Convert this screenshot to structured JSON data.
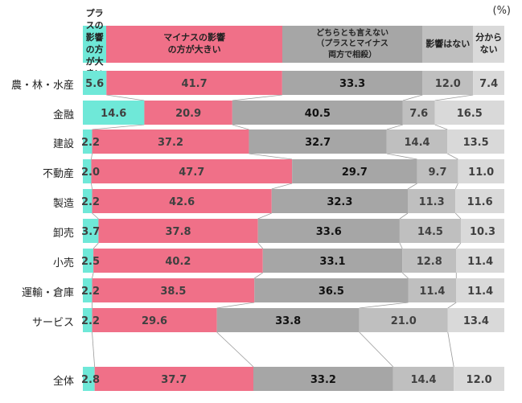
{
  "unit": "(%)",
  "colors": {
    "plus": "#6fe8d8",
    "minus": "#f07088",
    "neither": "#a6a6a6",
    "no_effect": "#bfbfbf",
    "unknown": "#d9d9d9"
  },
  "legend": [
    {
      "key": "plus",
      "label": "プラスの影響\nの方が大きい"
    },
    {
      "key": "minus",
      "label": "マイナスの影響\nの方が大きい"
    },
    {
      "key": "neither",
      "label": "どちらとも言えない\n（プラスとマイナス\n両方で相殺）"
    },
    {
      "key": "no_effect",
      "label": "影響はない"
    },
    {
      "key": "unknown",
      "label": "分からない"
    }
  ],
  "chart_data": {
    "type": "bar",
    "orientation": "horizontal",
    "stacked": "100%",
    "unit": "(%)",
    "categories": [
      "農・林・水産",
      "金融",
      "建設",
      "不動産",
      "製造",
      "卸売",
      "小売",
      "運輸・倉庫",
      "サービス",
      "全体"
    ],
    "series": [
      {
        "name": "プラスの影響の方が大きい",
        "key": "plus",
        "values": [
          5.6,
          14.6,
          2.2,
          2.0,
          2.2,
          3.7,
          2.5,
          2.2,
          2.2,
          2.8
        ]
      },
      {
        "name": "マイナスの影響の方が大きい",
        "key": "minus",
        "values": [
          41.7,
          20.9,
          37.2,
          47.7,
          42.6,
          37.8,
          40.2,
          38.5,
          29.6,
          37.7
        ]
      },
      {
        "name": "どちらとも言えない（プラスとマイナス両方で相殺）",
        "key": "neither",
        "values": [
          33.3,
          40.5,
          32.7,
          29.7,
          32.3,
          33.6,
          33.1,
          36.5,
          33.8,
          33.2
        ]
      },
      {
        "name": "影響はない",
        "key": "no_effect",
        "values": [
          12.0,
          7.6,
          14.4,
          9.7,
          11.3,
          14.5,
          12.8,
          11.4,
          21.0,
          14.4
        ]
      },
      {
        "name": "分からない",
        "key": "unknown",
        "values": [
          7.4,
          16.5,
          13.5,
          11.0,
          11.6,
          10.3,
          11.4,
          11.4,
          13.4,
          12.0
        ]
      }
    ],
    "xlim": [
      0,
      100
    ],
    "grid": false,
    "legend_position": "top"
  }
}
